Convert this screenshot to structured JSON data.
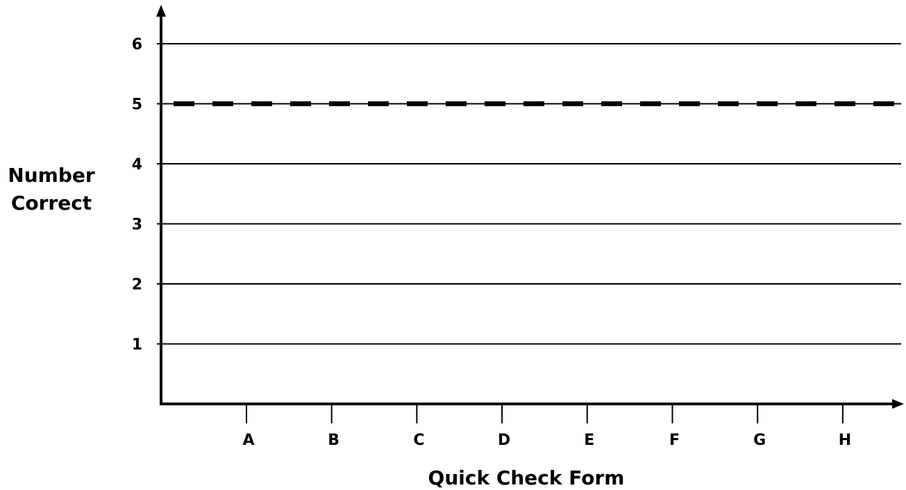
{
  "chart_data": {
    "type": "line",
    "title": "",
    "xlabel": "Quick Check Form",
    "ylabel": [
      "Number",
      "Correct"
    ],
    "categories": [
      "A",
      "B",
      "C",
      "D",
      "E",
      "F",
      "G",
      "H"
    ],
    "yticks": [
      "1",
      "2",
      "3",
      "4",
      "5",
      "6"
    ],
    "ylim": [
      0,
      6.5
    ],
    "grid": true,
    "series": [],
    "reference_lines": [
      {
        "value": 5,
        "style": "dashed"
      }
    ],
    "colors": {
      "axis": "#000000",
      "grid": "#000000",
      "background": "#ffffff"
    }
  }
}
